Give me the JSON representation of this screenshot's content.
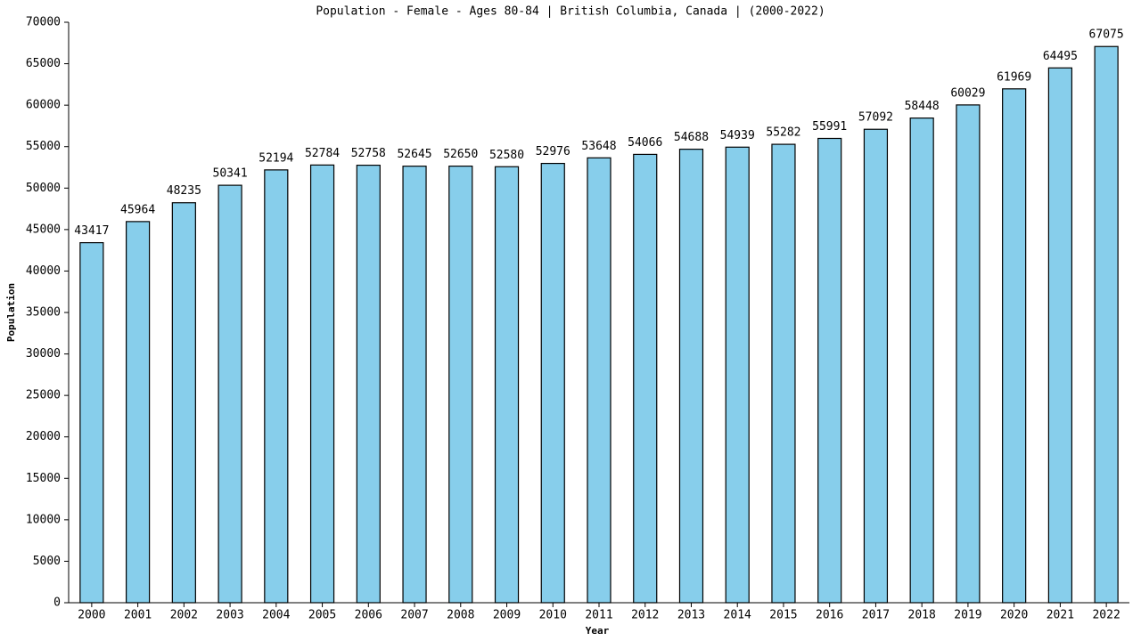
{
  "chart_data": {
    "type": "bar",
    "title": "Population - Female - Ages 80-84 | British Columbia, Canada |  (2000-2022)",
    "x_label": "Year",
    "y_label": "Population",
    "categories": [
      "2000",
      "2001",
      "2002",
      "2003",
      "2004",
      "2005",
      "2006",
      "2007",
      "2008",
      "2009",
      "2010",
      "2011",
      "2012",
      "2013",
      "2014",
      "2015",
      "2016",
      "2017",
      "2018",
      "2019",
      "2020",
      "2021",
      "2022"
    ],
    "values": [
      43417,
      45964,
      48235,
      50341,
      52194,
      52784,
      52758,
      52645,
      52650,
      52580,
      52976,
      53648,
      54066,
      54688,
      54939,
      55282,
      55991,
      57092,
      58448,
      60029,
      61969,
      64495,
      67075
    ],
    "color": "#87ceeb",
    "ylim": [
      0,
      70000
    ],
    "yticks": [
      0,
      5000,
      10000,
      15000,
      20000,
      25000,
      30000,
      35000,
      40000,
      45000,
      50000,
      55000,
      60000,
      65000,
      70000
    ],
    "grid": false
  }
}
